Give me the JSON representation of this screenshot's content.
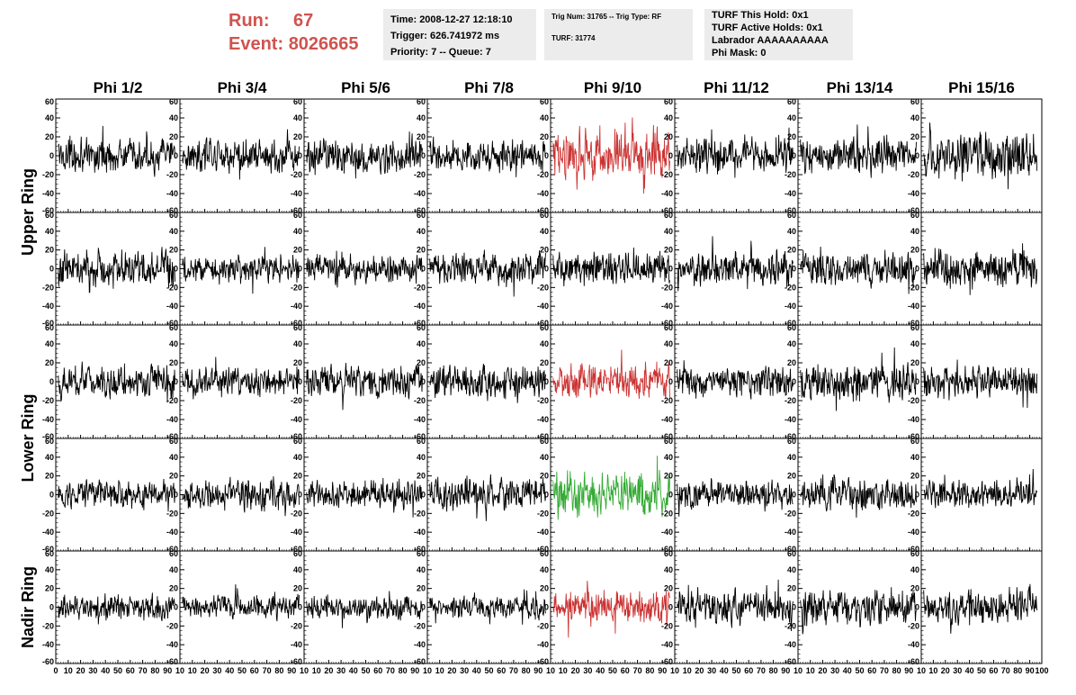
{
  "header": {
    "run_label": "Run:",
    "run_value": "67",
    "event_label": "Event:",
    "event_value": "8026665",
    "accent_color": "#d0534e",
    "time_line": "Time: 2008-12-27 12:18:10",
    "trigger_line": "Trigger: 626.741972 ms",
    "priority_line": "Priority: 7 -- Queue: 7",
    "trig_line": "Trig Num: 31765 -- Trig Type: RF",
    "turf_line": "TURF: 31774",
    "turf_hold_line": "TURF This Hold: 0x1",
    "turf_active_line": "TURF Active Holds: 0x1",
    "labrador_line": "Labrador AAAAAAAAAA",
    "phi_mask_line": "Phi Mask: 0"
  },
  "chart_data": {
    "type": "line",
    "columns": [
      "Phi 1/2",
      "Phi 3/4",
      "Phi 5/6",
      "Phi 7/8",
      "Phi 9/10",
      "Phi 11/12",
      "Phi 13/14",
      "Phi 15/16"
    ],
    "ring_labels": [
      {
        "text": "Upper Ring",
        "rows": [
          0,
          1
        ]
      },
      {
        "text": "Lower Ring",
        "rows": [
          2,
          3
        ]
      },
      {
        "text": "Nadir Ring",
        "rows": [
          4,
          4
        ]
      }
    ],
    "row_count": 5,
    "xlim": [
      0,
      100
    ],
    "ylim": [
      -60,
      60
    ],
    "x_ticks": [
      0,
      10,
      20,
      30,
      40,
      50,
      60,
      70,
      80,
      90,
      100
    ],
    "x_tick_labels_first": [
      "0",
      "10",
      "20",
      "30",
      "40",
      "50",
      "60",
      "70",
      "80",
      "90",
      "10"
    ],
    "x_tick_labels_mid": [
      "10",
      "20",
      "30",
      "40",
      "50",
      "60",
      "70",
      "80",
      "90",
      "10"
    ],
    "x_tick_labels_last": [
      "10",
      "20",
      "30",
      "40",
      "50",
      "60",
      "70",
      "80",
      "90",
      "100"
    ],
    "y_ticks": [
      60,
      40,
      20,
      0,
      -20,
      -40,
      -60
    ],
    "y_tick_labels": [
      "60",
      "40",
      "20",
      "0",
      "-20",
      "-40",
      "-60"
    ],
    "trace_color": "#000000",
    "highlight": [
      {
        "row": 0,
        "col": 4,
        "color": "#cc3333"
      },
      {
        "row": 2,
        "col": 4,
        "color": "#cc3333"
      },
      {
        "row": 3,
        "col": 4,
        "color": "#33aa33"
      },
      {
        "row": 4,
        "col": 4,
        "color": "#cc3333"
      }
    ],
    "amplitude_levels": [
      [
        14,
        14,
        14,
        14,
        24,
        14,
        16,
        20
      ],
      [
        16,
        12,
        12,
        14,
        14,
        14,
        14,
        16
      ],
      [
        14,
        12,
        14,
        14,
        16,
        14,
        16,
        14
      ],
      [
        12,
        14,
        12,
        14,
        20,
        12,
        14,
        12
      ],
      [
        12,
        10,
        10,
        10,
        14,
        16,
        16,
        14
      ]
    ],
    "samples_per_trace": 260
  }
}
